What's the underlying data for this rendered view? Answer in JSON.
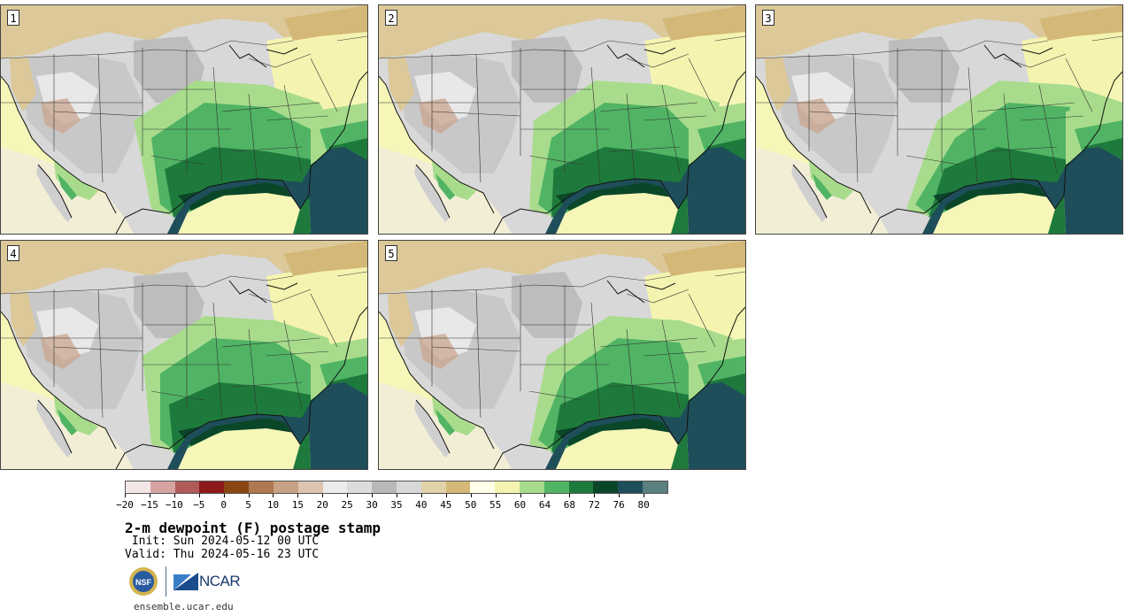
{
  "panels": [
    {
      "label": "1",
      "variant": 0
    },
    {
      "label": "2",
      "variant": 1
    },
    {
      "label": "3",
      "variant": 2
    },
    {
      "label": "4",
      "variant": 3
    },
    {
      "label": "5",
      "variant": 4
    }
  ],
  "colorbar": {
    "colors": [
      "#f2e6e6",
      "#d6a3a3",
      "#b05a5a",
      "#8c1a1a",
      "#8b4513",
      "#b07850",
      "#c8a084",
      "#dcc4b0",
      "#ececec",
      "#dcdcdc",
      "#b8b8b8",
      "#d8d8d8",
      "#e2d2aa",
      "#d4b878",
      "#ffffe8",
      "#f4f4b0",
      "#a8dc8c",
      "#50b464",
      "#1e7a3c",
      "#0a4628",
      "#1e4e5a",
      "#5a8080"
    ],
    "tick_labels": [
      "-20",
      "-15",
      "-10",
      "-5",
      "0",
      "5",
      "10",
      "15",
      "20",
      "25",
      "30",
      "35",
      "40",
      "45",
      "50",
      "55",
      "60",
      "64",
      "68",
      "72",
      "76",
      "80"
    ]
  },
  "title": "2-m dewpoint (F) postage stamp",
  "init_text": " Init: Sun 2024-05-12 00 UTC",
  "valid_text": "Valid: Thu 2024-05-16 23 UTC",
  "logo": {
    "nsf_text": "NSF",
    "ncar_text": "NCAR"
  },
  "site": "ensemble.ucar.edu"
}
